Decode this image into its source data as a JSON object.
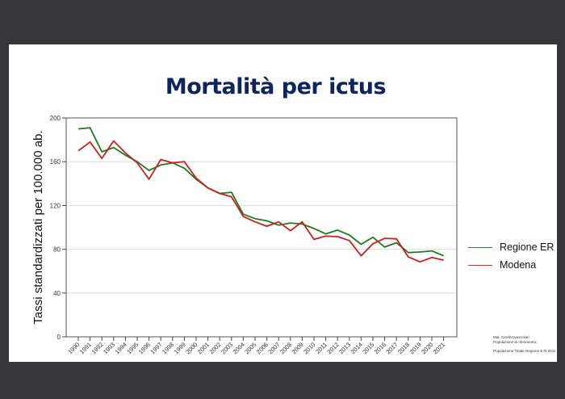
{
  "slide": {
    "title": "Mortalità per ictus",
    "notes": [
      "Mal. Cerebrovascolari",
      "Popolazione di riferimento:",
      "Popolazione Totale Regione E-R 2011"
    ]
  },
  "legend": {
    "items": [
      {
        "label": "Regione ER",
        "color": "#2e7d32"
      },
      {
        "label": "Modena",
        "color": "#d32f2f"
      }
    ]
  },
  "chart_data": {
    "type": "line",
    "title": "Mortalità per ictus",
    "xlabel": "",
    "ylabel": "Tassi standardizzati per 100.000 ab.",
    "ylim": [
      0,
      200
    ],
    "yticks": [
      0,
      40,
      80,
      120,
      160,
      200
    ],
    "grid": true,
    "legend_position": "right",
    "x": [
      "1990",
      "1991",
      "1992",
      "1993",
      "1994",
      "1995",
      "1996",
      "1997",
      "1998",
      "1999",
      "2000",
      "2001",
      "2002",
      "2003",
      "2004",
      "2005",
      "2006",
      "2007",
      "2008",
      "2009",
      "2010",
      "2011",
      "2012",
      "2013",
      "2014",
      "2015",
      "2016",
      "2017",
      "2018",
      "2019",
      "2020",
      "2021"
    ],
    "series": [
      {
        "name": "Regione ER",
        "color": "#1e7b1e",
        "values": [
          190,
          191,
          169,
          173,
          166,
          160,
          152,
          157,
          159,
          154,
          144,
          136,
          131,
          132,
          112,
          108,
          106,
          102,
          104,
          103,
          99,
          94,
          97.5,
          93,
          84.5,
          91,
          82,
          86,
          77,
          77.5,
          78.5,
          74
        ]
      },
      {
        "name": "Modena",
        "color": "#cc1f1f",
        "values": [
          170,
          178,
          163,
          179,
          168,
          159,
          144,
          162,
          159,
          160,
          145,
          136,
          131,
          128,
          110,
          105,
          101,
          105,
          97,
          105,
          89,
          92,
          91.5,
          88,
          74,
          85,
          90,
          89.5,
          73,
          68.5,
          72.5,
          70
        ]
      }
    ]
  }
}
